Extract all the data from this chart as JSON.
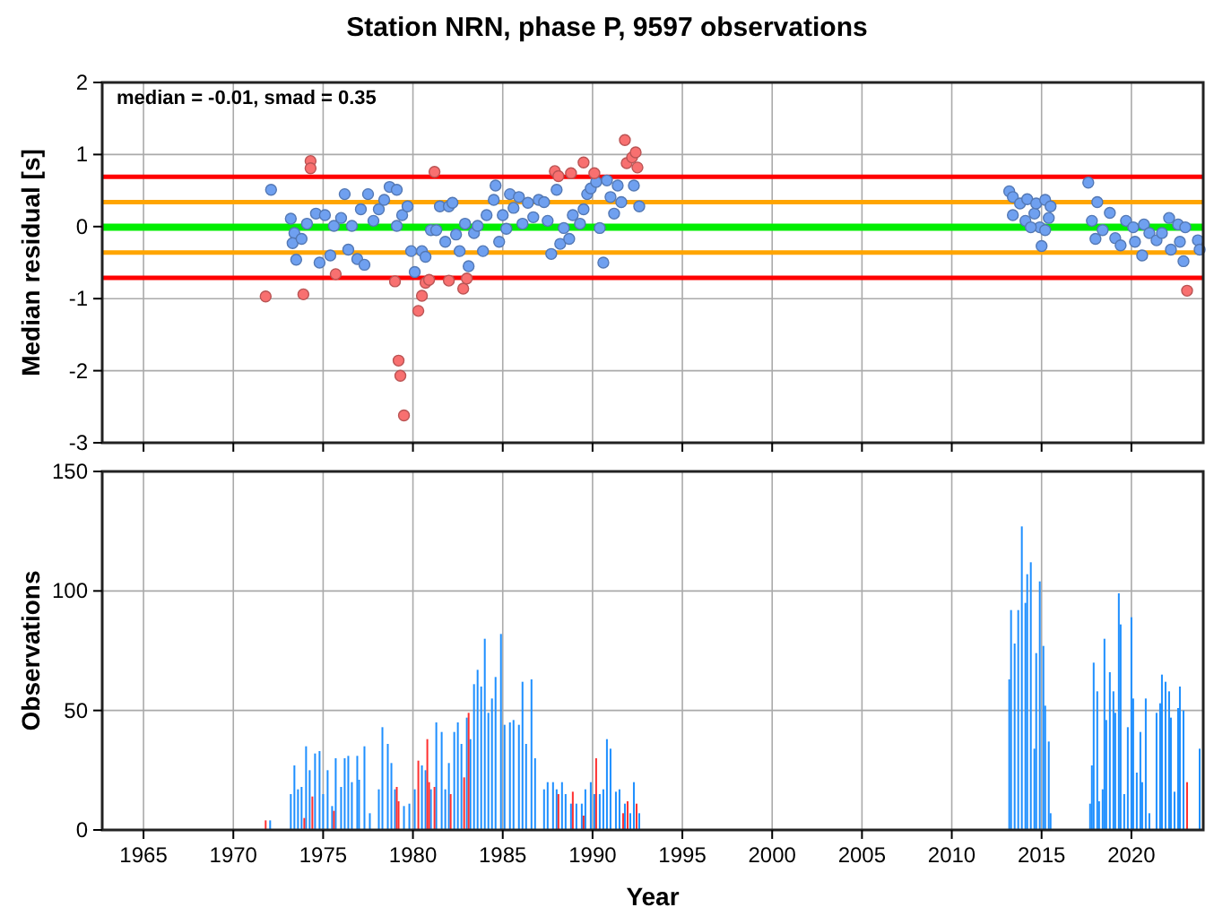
{
  "chart_data": [
    {
      "type": "scatter",
      "title": "Station NRN, phase P, 9597 observations",
      "ylabel": "Median residual [s]",
      "xlim": [
        1962.7,
        2024
      ],
      "xticks": [
        1965,
        1970,
        1975,
        1980,
        1985,
        1990,
        1995,
        2000,
        2005,
        2010,
        2015,
        2020
      ],
      "ylim": [
        -3,
        2
      ],
      "yticks": [
        -3,
        -2,
        -1,
        0,
        1,
        2
      ],
      "tick_labels": "y",
      "grid": true,
      "marker": "circle",
      "annotations": [
        "median = -0.01, smad = 0.35"
      ],
      "ref_lines": [
        {
          "axis": "y",
          "value": 0.69,
          "color": "#ff0000"
        },
        {
          "axis": "y",
          "value": 0.34,
          "color": "#ffa500"
        },
        {
          "axis": "y",
          "value": -0.01,
          "color": "#00ee00"
        },
        {
          "axis": "y",
          "value": -0.36,
          "color": "#ffa500"
        },
        {
          "axis": "y",
          "value": -0.71,
          "color": "#ff0000"
        }
      ],
      "series": [
        {
          "color": "#6fa0f0",
          "x": [
            1972.1,
            1973.2,
            1973.4,
            1973.3,
            1973.5,
            1973.8,
            1974.1,
            1974.6,
            1974.8,
            1975.1,
            1975.4,
            1975.6,
            1976.0,
            1976.2,
            1976.4,
            1976.6,
            1976.9,
            1977.1,
            1977.3,
            1977.5,
            1977.8,
            1978.1,
            1978.4,
            1978.7,
            1979.1,
            1979.1,
            1979.4,
            1979.7,
            1979.9,
            1980.1,
            1980.5,
            1980.7,
            1981.0,
            1981.3,
            1981.5,
            1981.8,
            1982.0,
            1982.2,
            1982.4,
            1982.6,
            1982.9,
            1983.1,
            1983.4,
            1983.6,
            1983.9,
            1984.1,
            1984.5,
            1984.6,
            1984.8,
            1985.0,
            1985.2,
            1985.4,
            1985.6,
            1985.9,
            1986.1,
            1986.4,
            1986.7,
            1987.0,
            1987.3,
            1987.5,
            1987.7,
            1988.0,
            1988.2,
            1988.4,
            1988.7,
            1988.9,
            1989.3,
            1989.5,
            1989.7,
            1989.9,
            1990.2,
            1990.4,
            1990.6,
            1990.8,
            1991.0,
            1991.2,
            1991.4,
            1991.6,
            1992.3,
            1992.6,
            2013.2,
            2013.4,
            2013.8,
            2013.4,
            2014.1,
            2014.2,
            2014.6,
            2014.7,
            2014.9,
            2015.0,
            2015.2,
            2015.4,
            2015.5,
            2015.2,
            2014.4,
            2017.6,
            2018.1,
            2017.8,
            2018.0,
            2018.4,
            2018.8,
            2019.1,
            2019.4,
            2019.7,
            2020.1,
            2020.2,
            2020.6,
            2020.7,
            2021.0,
            2021.4,
            2021.7,
            2022.1,
            2022.2,
            2022.6,
            2022.7,
            2022.9,
            2023.0,
            2023.7,
            2023.8
          ],
          "values": [
            0.51,
            0.11,
            -0.09,
            -0.23,
            -0.46,
            -0.17,
            0.04,
            0.18,
            -0.5,
            0.16,
            -0.4,
            0.01,
            0.12,
            0.45,
            -0.32,
            0.01,
            -0.45,
            0.24,
            -0.53,
            0.45,
            0.08,
            0.24,
            0.37,
            0.55,
            0.51,
            0.01,
            0.16,
            0.28,
            -0.34,
            -0.63,
            -0.34,
            -0.42,
            -0.05,
            -0.05,
            0.28,
            -0.21,
            0.28,
            0.33,
            -0.11,
            -0.34,
            0.04,
            -0.55,
            -0.09,
            0.01,
            -0.34,
            0.16,
            0.37,
            0.57,
            -0.21,
            0.16,
            -0.03,
            0.45,
            0.26,
            0.41,
            0.04,
            0.33,
            0.13,
            0.37,
            0.34,
            0.08,
            -0.38,
            0.51,
            -0.24,
            -0.02,
            -0.17,
            0.16,
            0.04,
            0.24,
            0.45,
            0.53,
            0.62,
            -0.02,
            -0.5,
            0.64,
            0.41,
            0.18,
            0.57,
            0.34,
            0.57,
            0.28,
            0.49,
            0.41,
            0.32,
            0.16,
            0.08,
            0.38,
            0.18,
            0.32,
            -0.01,
            -0.27,
            0.37,
            0.12,
            0.28,
            -0.05,
            -0.01,
            0.61,
            0.34,
            0.08,
            -0.17,
            -0.05,
            0.19,
            -0.16,
            -0.26,
            0.08,
            -0.01,
            -0.21,
            -0.4,
            0.03,
            -0.09,
            -0.19,
            -0.09,
            0.12,
            -0.32,
            0.03,
            -0.21,
            -0.48,
            -0.01,
            -0.19,
            -0.32
          ]
        },
        {
          "color": "#f87070",
          "x": [
            1971.8,
            1974.3,
            1974.3,
            1973.9,
            1975.7,
            1979.0,
            1979.2,
            1979.3,
            1979.5,
            1980.3,
            1980.5,
            1980.7,
            1980.9,
            1981.2,
            1982.0,
            1982.8,
            1983.0,
            1987.9,
            1988.1,
            1988.8,
            1989.5,
            1990.1,
            1991.8,
            1991.9,
            1992.2,
            1992.4,
            1992.5,
            2023.1
          ],
          "values": [
            -0.97,
            0.91,
            0.81,
            -0.94,
            -0.66,
            -0.76,
            -1.86,
            -2.07,
            -2.62,
            -1.17,
            -0.96,
            -0.78,
            -0.74,
            0.76,
            -0.75,
            -0.86,
            -0.72,
            0.77,
            0.7,
            0.74,
            0.89,
            0.74,
            1.2,
            0.88,
            0.96,
            1.03,
            0.82,
            -0.89
          ]
        }
      ]
    },
    {
      "type": "bar",
      "xlabel": "Year",
      "ylabel": "Observations",
      "xlim": [
        1962.7,
        2024
      ],
      "xticks": [
        1965,
        1970,
        1975,
        1980,
        1985,
        1990,
        1995,
        2000,
        2005,
        2010,
        2015,
        2020
      ],
      "ylim": [
        0,
        150
      ],
      "yticks": [
        0,
        50,
        100,
        150
      ],
      "grid": true,
      "series": [
        {
          "color": "#1e8fff",
          "x": [
            1972.05,
            1973.2,
            1973.4,
            1973.6,
            1973.8,
            1974.05,
            1974.25,
            1974.55,
            1974.8,
            1975.0,
            1975.25,
            1975.5,
            1975.7,
            1976.0,
            1976.2,
            1976.4,
            1976.6,
            1976.9,
            1977.0,
            1977.3,
            1977.6,
            1978.1,
            1978.3,
            1978.6,
            1978.8,
            1979.0,
            1979.5,
            1979.8,
            1980.1,
            1980.5,
            1980.7,
            1981.0,
            1981.3,
            1981.6,
            1981.8,
            1982.0,
            1982.3,
            1982.5,
            1982.7,
            1983.0,
            1983.2,
            1983.4,
            1983.6,
            1983.8,
            1984.0,
            1984.2,
            1984.4,
            1984.6,
            1984.9,
            1985.1,
            1985.4,
            1985.6,
            1985.9,
            1986.1,
            1986.3,
            1986.6,
            1986.8,
            1987.3,
            1987.5,
            1987.8,
            1988.0,
            1988.3,
            1988.5,
            1988.8,
            1989.1,
            1989.4,
            1989.6,
            1989.9,
            1990.1,
            1990.4,
            1990.6,
            1990.8,
            1991.0,
            1991.3,
            1991.5,
            1991.8,
            1992.1,
            1992.3,
            1992.6,
            2013.2,
            2013.3,
            2013.5,
            2013.7,
            2013.9,
            2014.1,
            2014.2,
            2014.4,
            2014.6,
            2014.7,
            2014.9,
            2015.1,
            2015.2,
            2015.4,
            2015.5,
            2017.7,
            2017.8,
            2017.9,
            2018.1,
            2018.2,
            2018.4,
            2018.5,
            2018.6,
            2018.8,
            2019.0,
            2019.1,
            2019.3,
            2019.4,
            2019.6,
            2019.8,
            2020.0,
            2020.1,
            2020.3,
            2020.5,
            2020.6,
            2020.8,
            2021.0,
            2021.4,
            2021.6,
            2021.7,
            2021.9,
            2022.1,
            2022.2,
            2022.4,
            2022.6,
            2022.7,
            2022.9,
            2023.8
          ],
          "values": [
            4,
            15,
            27,
            17,
            18,
            35,
            25,
            32,
            33,
            15,
            25,
            10,
            30,
            18,
            30,
            31,
            20,
            31,
            21,
            35,
            7,
            17,
            43,
            36,
            28,
            17,
            10,
            11,
            17,
            27,
            25,
            17,
            45,
            41,
            17,
            28,
            41,
            45,
            36,
            47,
            38,
            61,
            67,
            60,
            80,
            49,
            55,
            64,
            82,
            44,
            45,
            46,
            44,
            62,
            36,
            63,
            30,
            17,
            20,
            20,
            17,
            20,
            15,
            11,
            11,
            11,
            17,
            20,
            15,
            15,
            17,
            38,
            34,
            16,
            17,
            11,
            7,
            20,
            7,
            63,
            92,
            78,
            92,
            127,
            95,
            107,
            112,
            34,
            74,
            104,
            77,
            52,
            37,
            7,
            11,
            27,
            70,
            58,
            12,
            17,
            80,
            46,
            66,
            58,
            49,
            99,
            86,
            15,
            43,
            89,
            55,
            24,
            41,
            20,
            55,
            7,
            49,
            53,
            65,
            62,
            58,
            47,
            16,
            51,
            60,
            50,
            34
          ]
        },
        {
          "color": "#ff3030",
          "x": [
            1971.8,
            1973.95,
            1974.4,
            1975.6,
            1979.1,
            1979.2,
            1980.3,
            1980.8,
            1980.9,
            1981.2,
            1982.1,
            1982.85,
            1983.1,
            1988.1,
            1988.9,
            1989.5,
            1990.2,
            1991.7,
            1991.95,
            1992.45,
            2023.1
          ],
          "values": [
            4,
            5,
            14,
            8,
            18,
            12,
            29,
            38,
            20,
            18,
            15,
            22,
            49,
            15,
            16,
            6,
            30,
            7,
            12,
            11,
            20
          ]
        }
      ]
    }
  ]
}
